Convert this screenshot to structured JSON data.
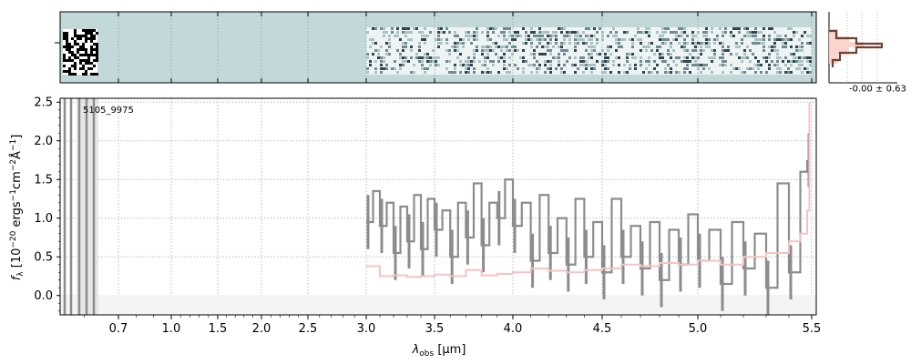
{
  "figure": {
    "object_label": "5105_9975",
    "hist_annotation": "-0.00 ± 0.63"
  },
  "chart_data": {
    "type": "line",
    "title": "",
    "xlabel_symbol": "λ",
    "xlabel_sub": "obs",
    "xlabel_unit": "[μm]",
    "ylabel": "f_λ [10^-20 ergs^-1 cm^-2 Å^-1]",
    "ylabel_parts": {
      "f": "f",
      "f_sub": "λ",
      "pre": "[10",
      "e1": "−20",
      "mid1": " ergs",
      "e2": "−1",
      "mid2": "cm",
      "e3": "−2",
      "mid3": "Å",
      "e4": "−1",
      "post": "]"
    },
    "ylim": [
      -0.25,
      2.55
    ],
    "x_tick_labels": [
      "0.7",
      "1.0",
      "1.5",
      "2.0",
      "2.5",
      "3.0",
      "3.5",
      "4.0",
      "4.5",
      "5.0",
      "5.5"
    ],
    "x_tick_data": [
      0.7,
      1.0,
      1.5,
      2.0,
      2.5,
      3.0,
      3.5,
      4.0,
      4.5,
      5.0,
      5.5
    ],
    "y_ticks": [
      0.0,
      0.5,
      1.0,
      1.5,
      2.0,
      2.5
    ],
    "y_tick_labels": [
      "0.0",
      "0.5",
      "1.0",
      "1.5",
      "2.0",
      "2.5"
    ],
    "grid": true,
    "series": [
      {
        "color": "#8c8c8c",
        "x": [
          3.0,
          3.05,
          3.1,
          3.15,
          3.2,
          3.25,
          3.3,
          3.35,
          3.4,
          3.45,
          3.5,
          3.55,
          3.6,
          3.65,
          3.7,
          3.75,
          3.8,
          3.85,
          3.9,
          3.95,
          4.0,
          4.05,
          4.1,
          4.15,
          4.2,
          4.25,
          4.3,
          4.35,
          4.4,
          4.45,
          4.5,
          4.55,
          4.6,
          4.65,
          4.7,
          4.75,
          4.8,
          4.85,
          4.9,
          4.95,
          5.0,
          5.05,
          5.1,
          5.15,
          5.2,
          5.25,
          5.3,
          5.35,
          5.4,
          5.45,
          5.48
        ],
        "y": [
          0.95,
          1.35,
          0.9,
          1.2,
          0.55,
          1.15,
          0.7,
          1.3,
          0.6,
          1.25,
          0.85,
          1.1,
          0.5,
          1.2,
          0.75,
          1.45,
          0.65,
          1.2,
          1.0,
          1.5,
          0.9,
          1.2,
          0.45,
          1.3,
          0.55,
          1.0,
          0.4,
          1.25,
          0.5,
          0.95,
          0.3,
          1.25,
          0.5,
          0.9,
          0.35,
          0.95,
          0.2,
          0.85,
          0.4,
          1.05,
          0.45,
          0.85,
          0.15,
          0.95,
          0.35,
          0.8,
          0.1,
          1.45,
          0.3,
          1.6,
          1.75
        ]
      },
      {
        "color": "#f6c3c3",
        "x": [
          3.0,
          3.1,
          3.2,
          3.3,
          3.4,
          3.5,
          3.6,
          3.7,
          3.8,
          3.9,
          4.0,
          4.1,
          4.2,
          4.3,
          4.4,
          4.5,
          4.6,
          4.7,
          4.8,
          4.9,
          5.0,
          5.1,
          5.2,
          5.3,
          5.4,
          5.45,
          5.48,
          5.49
        ],
        "y": [
          0.38,
          0.25,
          0.26,
          0.24,
          0.25,
          0.27,
          0.25,
          0.33,
          0.26,
          0.28,
          0.3,
          0.35,
          0.32,
          0.3,
          0.33,
          0.35,
          0.4,
          0.38,
          0.42,
          0.4,
          0.45,
          0.4,
          0.5,
          0.55,
          0.7,
          0.8,
          1.1,
          2.5
        ]
      }
    ],
    "hist_ticks": [
      "-0.00 ± 0.63"
    ]
  }
}
